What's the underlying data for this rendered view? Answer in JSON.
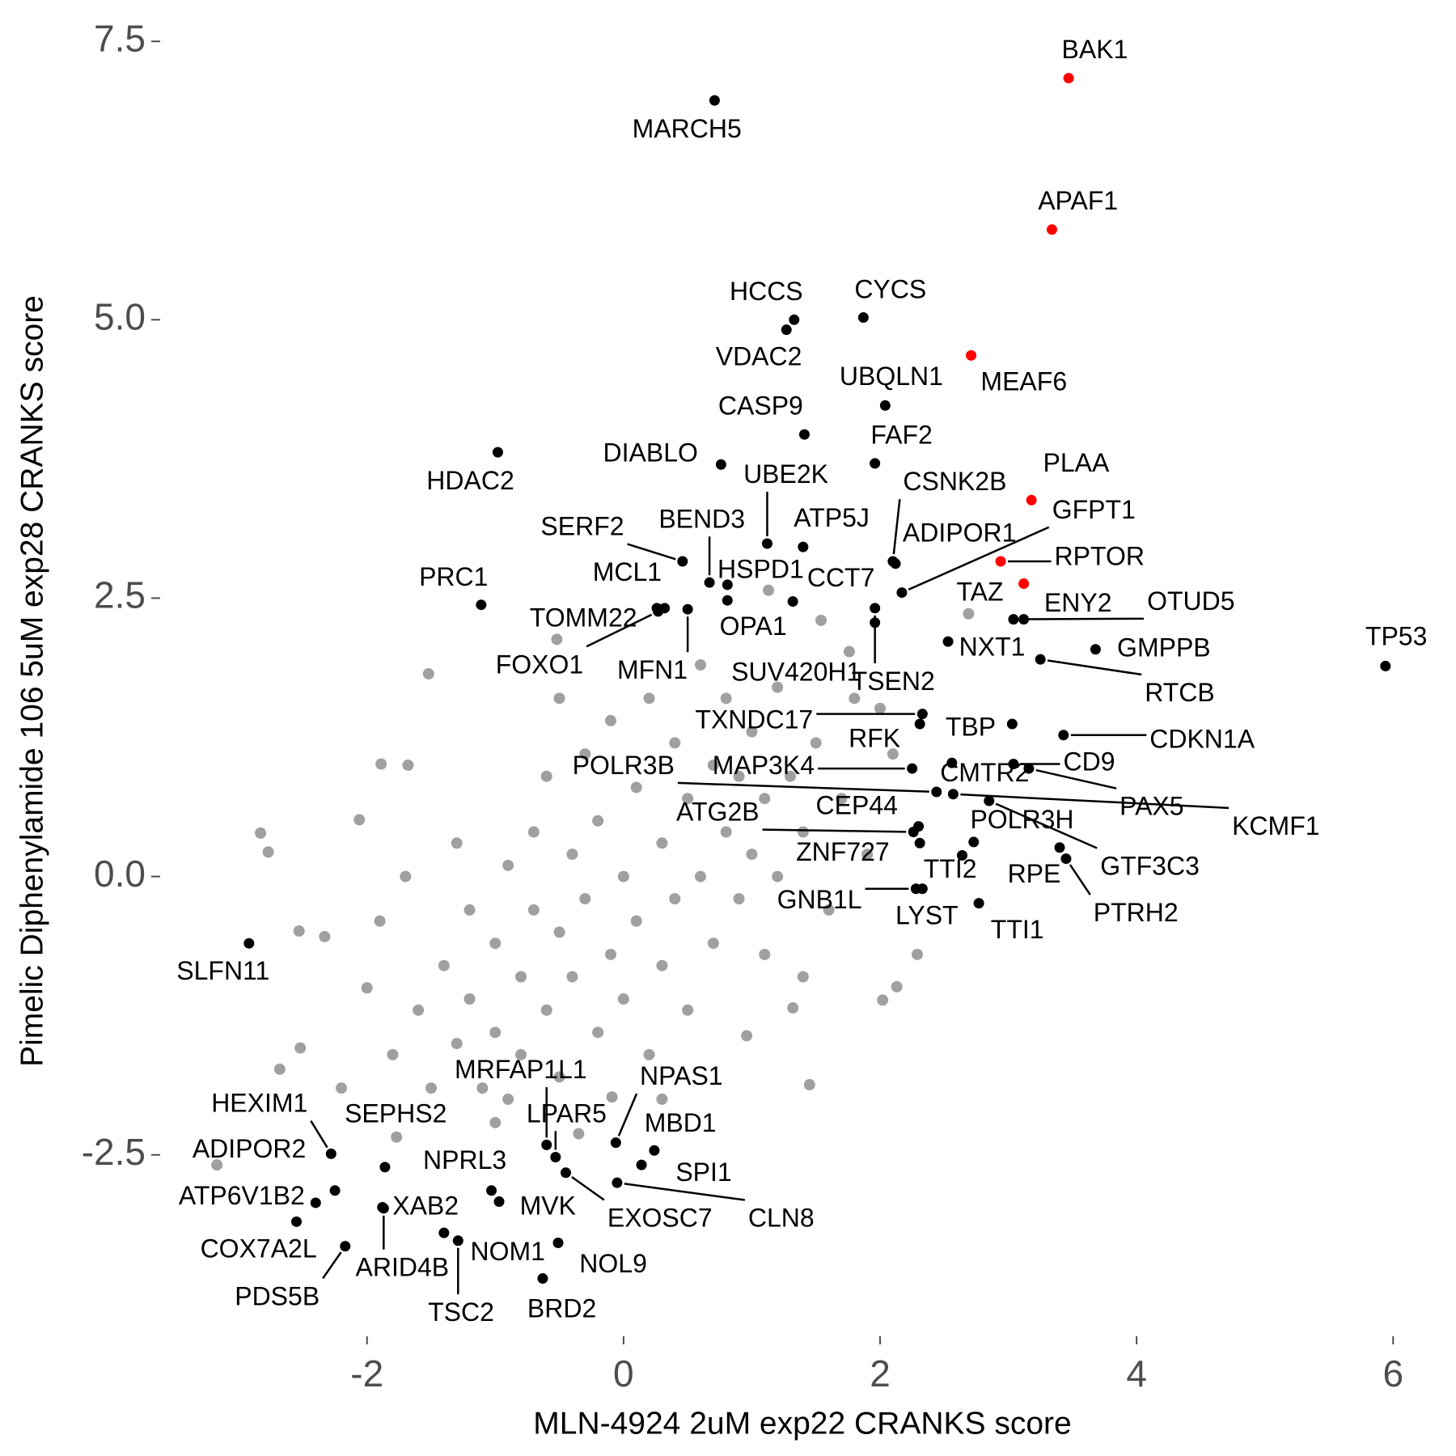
{
  "chart_data": {
    "type": "scatter",
    "x_label": "MLN-4924 2uM exp22 CRANKS score",
    "y_label": "Pimelic Diphenylamide 106 5uM exp28 CRANKS score",
    "xlim": [
      -3.6,
      6.2
    ],
    "ylim": [
      -4.1,
      7.65
    ],
    "xticks": [
      -2,
      0,
      2,
      4,
      6
    ],
    "yticks": [
      -2.5,
      {
        "value": 0,
        "label": "0.0"
      },
      2.5,
      {
        "value": 5,
        "label": "5.0"
      },
      7.5
    ],
    "series": [
      {
        "color": "#a0a0a0",
        "x": [
          -3.17,
          -2.83,
          -2.77,
          -1.52,
          -1.89,
          1.45,
          2.13,
          2.29,
          2.02,
          2.69,
          -0.52,
          -2.53,
          -2.33,
          -2.68,
          -2.52,
          -2.06,
          -1.68,
          1.76,
          1.54,
          1.13,
          2.0,
          -0.09,
          -0.35,
          -1.0,
          -1.77,
          0.96,
          1.32,
          -1.8,
          -1.6,
          -1.5,
          -1.4,
          -1.3,
          -1.2,
          -1.2,
          -1.1,
          -1.0,
          -1.0,
          -0.9,
          -0.9,
          -0.8,
          -0.8,
          -0.7,
          -0.7,
          -0.6,
          -0.6,
          -0.5,
          -0.5,
          -0.4,
          -0.4,
          -0.3,
          -0.3,
          -0.2,
          -0.2,
          -0.1,
          -0.1,
          0.0,
          0.0,
          0.1,
          0.1,
          0.2,
          0.2,
          0.3,
          0.3,
          0.4,
          0.4,
          0.5,
          0.5,
          0.6,
          0.6,
          0.7,
          0.7,
          0.8,
          0.8,
          0.9,
          0.9,
          1.0,
          1.0,
          1.1,
          1.1,
          1.2,
          1.2,
          1.3,
          1.4,
          1.5,
          1.6,
          1.7,
          1.8,
          -1.9,
          -2.0,
          -1.7,
          1.9,
          -0.5,
          0.3,
          -1.3,
          1.4,
          2.1,
          -2.2
        ],
        "y": [
          -2.59,
          0.39,
          0.22,
          1.82,
          1.01,
          -1.87,
          -0.99,
          -0.7,
          -1.11,
          2.36,
          2.13,
          -0.49,
          -0.54,
          -1.73,
          -1.54,
          0.51,
          1.0,
          2.02,
          2.3,
          2.57,
          1.51,
          -1.98,
          -2.31,
          -2.21,
          -2.34,
          -1.43,
          -1.18,
          -1.6,
          -1.2,
          -1.9,
          -0.8,
          -1.5,
          -0.3,
          -1.1,
          -1.9,
          -0.6,
          -1.4,
          0.1,
          -2.0,
          -0.9,
          -1.6,
          0.4,
          -0.3,
          -1.2,
          0.9,
          -0.5,
          -1.8,
          0.2,
          -0.9,
          1.1,
          -0.2,
          -1.4,
          0.5,
          -0.7,
          1.4,
          0.0,
          -1.1,
          0.8,
          -0.4,
          1.6,
          -1.6,
          0.3,
          -0.8,
          1.2,
          -0.2,
          0.7,
          -1.2,
          1.9,
          0.0,
          1.0,
          -0.6,
          0.4,
          1.6,
          -0.2,
          0.9,
          1.3,
          0.2,
          -0.7,
          0.7,
          1.7,
          0.0,
          0.9,
          0.4,
          1.2,
          -0.3,
          0.7,
          1.6,
          -0.4,
          -1.0,
          0.0,
          0.2,
          1.6,
          -2.0,
          0.3,
          -0.9,
          1.1,
          -1.9
        ]
      },
      {
        "color": "#000000",
        "x": [
          0.71,
          1.33,
          1.27,
          1.87,
          2.04,
          1.41,
          1.96,
          0.76,
          -0.98,
          1.12,
          1.4,
          2.1,
          2.12,
          2.17,
          0.46,
          0.67,
          0.81,
          0.32,
          0.26,
          0.27,
          0.5,
          0.81,
          1.32,
          -1.11,
          1.96,
          1.96,
          3.12,
          3.04,
          3.68,
          2.53,
          3.25,
          5.94,
          2.33,
          2.31,
          3.03,
          3.43,
          3.04,
          2.56,
          2.25,
          2.44,
          3.16,
          2.57,
          2.3,
          2.26,
          2.31,
          2.73,
          2.85,
          3.4,
          3.45,
          2.64,
          2.28,
          2.33,
          2.77,
          -2.92,
          -2.28,
          -1.86,
          -2.25,
          -2.4,
          -2.55,
          -1.88,
          -1.87,
          -2.17,
          -1.03,
          -0.97,
          -1.4,
          -1.29,
          -0.63,
          -0.51,
          -0.6,
          -0.53,
          -0.45,
          -0.06,
          0.24,
          0.14,
          -0.05
        ],
        "y": [
          6.97,
          5.0,
          4.91,
          5.02,
          4.23,
          3.97,
          3.71,
          3.7,
          3.81,
          2.99,
          2.96,
          2.83,
          2.81,
          2.55,
          2.83,
          2.64,
          2.62,
          2.41,
          2.41,
          2.38,
          2.4,
          2.48,
          2.47,
          2.44,
          2.28,
          2.41,
          2.31,
          2.31,
          2.04,
          2.11,
          1.95,
          1.89,
          1.46,
          1.37,
          1.37,
          1.27,
          1.01,
          1.02,
          0.97,
          0.76,
          0.97,
          0.74,
          0.45,
          0.4,
          0.3,
          0.31,
          0.68,
          0.26,
          0.16,
          0.19,
          -0.11,
          -0.11,
          -0.24,
          -0.6,
          -2.49,
          -2.61,
          -2.82,
          -2.93,
          -3.1,
          -2.97,
          -2.98,
          -3.32,
          -2.82,
          -2.92,
          -3.2,
          -3.27,
          -3.61,
          -3.29,
          -2.41,
          -2.52,
          -2.66,
          -2.39,
          -2.46,
          -2.59,
          -2.75
        ],
        "labels": [
          "MARCH5",
          "HCCS",
          "VDAC2",
          "CYCS",
          "UBQLN1",
          "CASP9",
          "FAF2",
          "DIABLO",
          "HDAC2",
          "UBE2K",
          "ATP5J",
          "CSNK2B",
          "ADIPOR1",
          "GFPT1",
          "SERF2",
          "BEND3",
          "HSPD1",
          "MCL1",
          "TOMM22",
          "FOXO1",
          "MFN1",
          "OPA1",
          "CCT7",
          "PRC1",
          "SUV420H1",
          "TSEN2",
          "ENY2",
          "OTUD5",
          "GMPPB",
          "NXT1",
          "RTCB",
          "TP53",
          "TXNDC17",
          "RFK",
          "TBP",
          "CDKN1A",
          "CD9",
          "CMTR2",
          "MAP3K4",
          "POLR3B",
          "PAX5",
          "KCMF1",
          "CEP44",
          "ATG2B",
          "ZNF727",
          "POLR3H",
          "GTF3C3",
          "RPE",
          "PTRH2",
          "TTI2",
          "GNB1L",
          "LYST",
          "TTI1",
          "SLFN11",
          "HEXIM1",
          "SEPHS2",
          "ADIPOR2",
          "ATP6V1B2",
          "COX7A2L",
          "XAB2",
          "ARID4B",
          "PDS5B",
          "NPRL3",
          "MVK",
          "NOM1",
          "TSC2",
          "BRD2",
          "NOL9",
          "MRFAP1L1",
          "LPAR5",
          "EXOSC7",
          "NPAS1",
          "MBD1",
          "SPI1",
          "CLN8"
        ]
      },
      {
        "color": "#ff0000",
        "x": [
          3.47,
          3.34,
          2.71,
          3.18,
          2.94,
          3.12
        ],
        "y": [
          7.17,
          5.81,
          4.68,
          3.38,
          2.83,
          2.63
        ],
        "labels": [
          "BAK1",
          "APAF1",
          "MEAF6",
          "PLAA",
          "RPTOR",
          "TAZ"
        ]
      }
    ]
  }
}
